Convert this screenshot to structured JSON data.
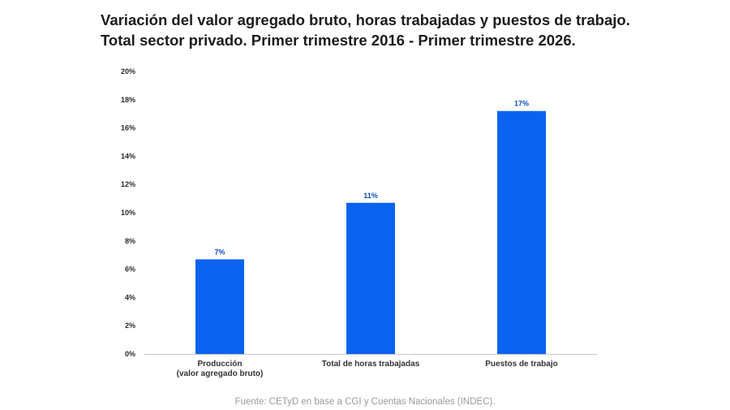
{
  "title": {
    "line1": "Variación del valor agregado bruto, horas trabajadas y puestos de trabajo.",
    "line2_regular": "Total sector privado. ",
    "line2_bold": "Primer trimestre 2016 - Primer trimestre 2026."
  },
  "source": "Fuente: CETyD en base a CGI y Cuentas Nacionales (INDEC).",
  "colors": {
    "bar": "#0a63ef",
    "data_label": "#0a4fc9",
    "axis": "#c8c8c8"
  },
  "chart_data": {
    "type": "bar",
    "categories": [
      [
        "Producción",
        "(valor agregado bruto)"
      ],
      [
        "Total de horas trabajadas"
      ],
      [
        "Puestos de trabajo"
      ]
    ],
    "values": [
      6.7,
      10.7,
      17.2
    ],
    "data_labels": [
      "7%",
      "11%",
      "17%"
    ],
    "yticks": [
      0,
      2,
      4,
      6,
      8,
      10,
      12,
      14,
      16,
      18,
      20
    ],
    "ytick_labels": [
      "0%",
      "2%",
      "4%",
      "6%",
      "8%",
      "10%",
      "12%",
      "14%",
      "16%",
      "18%",
      "20%"
    ],
    "ylim": [
      0,
      20
    ],
    "grid": false
  }
}
